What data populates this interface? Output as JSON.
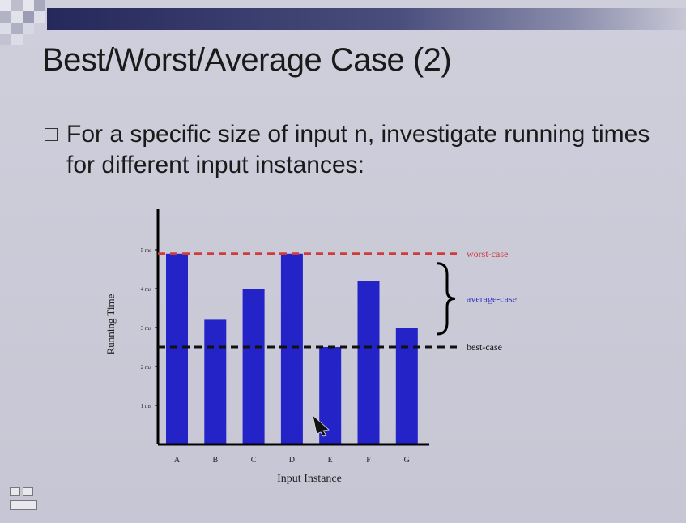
{
  "slide": {
    "title": "Best/Worst/Average Case (2)",
    "bullet": "For a specific size of input n, investigate running times for different input instances:"
  },
  "chart_data": {
    "type": "bar",
    "categories": [
      "A",
      "B",
      "C",
      "D",
      "E",
      "F",
      "G"
    ],
    "values": [
      4.9,
      3.2,
      4.0,
      4.9,
      2.5,
      4.2,
      3.0
    ],
    "xlabel": "Input Instance",
    "ylabel": "Running Time",
    "yticks": [
      "1 ms",
      "2 ms",
      "3 ms",
      "4 ms",
      "5 ms"
    ],
    "ylim": [
      0,
      5.7
    ],
    "bar_color": "#2323c8",
    "reference_lines": [
      {
        "label": "worst-case",
        "value": 4.9,
        "color": "#d03a3a",
        "style": "dashed"
      },
      {
        "label": "best-case",
        "value": 2.5,
        "color": "#111111",
        "style": "dashed"
      }
    ],
    "brace": {
      "label": "average-case",
      "color": "#3a3ac0"
    },
    "grid": false
  },
  "colors": {
    "title_bar": "#25285a",
    "background": "#c8c8d6",
    "worst": "#d03a3a",
    "average": "#3a3ac0",
    "bars": "#2323c8"
  },
  "icons": {
    "nav": "slide-navigation-icon",
    "cursor": "mouse-cursor-icon"
  }
}
